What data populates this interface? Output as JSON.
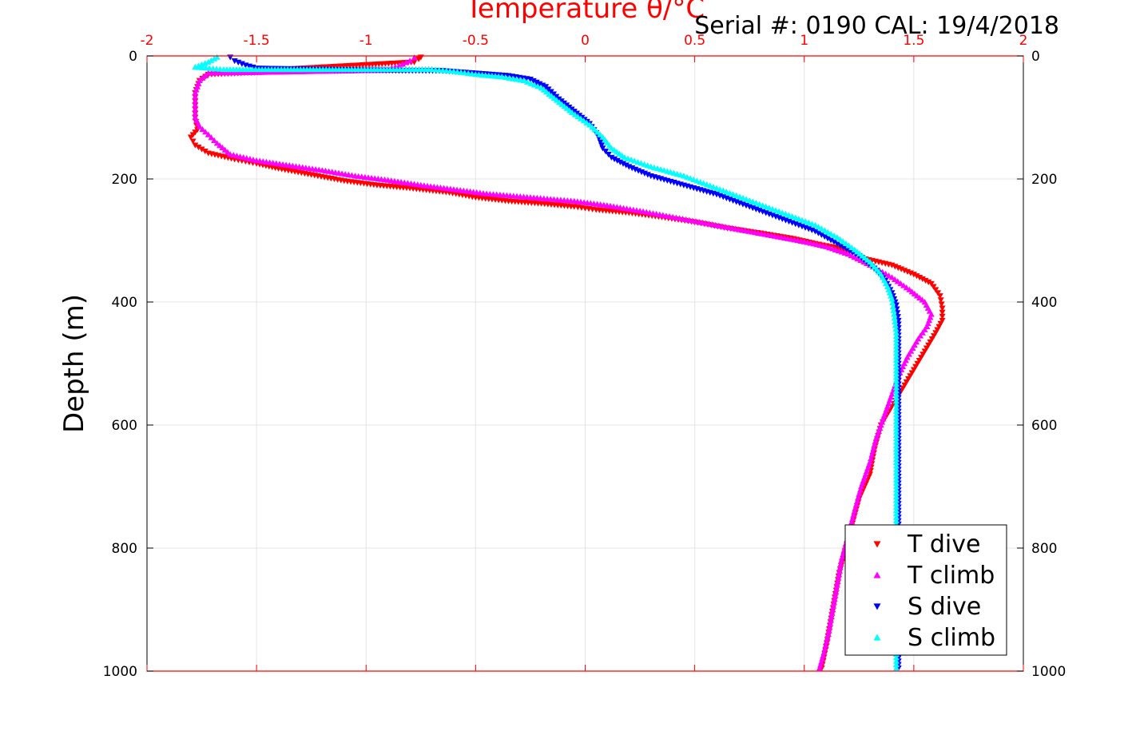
{
  "chart_data": {
    "type": "scatter",
    "title": "Serial #: 0190  CAL: 19/4/2018",
    "xlabel": "Temperature θ/°C",
    "ylabel": "Depth (m)",
    "xlim": [
      -2,
      2
    ],
    "ylim": [
      0,
      1000
    ],
    "y_reversed": true,
    "grid": true,
    "legend_position": "bottom-right",
    "x_ticks": [
      "-2",
      "-1.5",
      "-1",
      "-0.5",
      "0",
      "0.5",
      "1",
      "1.5",
      "2"
    ],
    "y_ticks": [
      "0",
      "200",
      "400",
      "600",
      "800",
      "1000"
    ],
    "x_axis_color": "#ff0000",
    "series": [
      {
        "name": "T dive",
        "marker": "triangle-down",
        "color": "#ff0000",
        "points": [
          [
            -0.75,
            2
          ],
          [
            -0.76,
            5
          ],
          [
            -0.78,
            10
          ],
          [
            -1.5,
            24
          ],
          [
            -1.1,
            24
          ],
          [
            -1.3,
            24
          ],
          [
            -1.72,
            30
          ],
          [
            -1.76,
            40
          ],
          [
            -1.78,
            60
          ],
          [
            -1.78,
            80
          ],
          [
            -1.78,
            100
          ],
          [
            -1.77,
            120
          ],
          [
            -1.8,
            132
          ],
          [
            -1.78,
            145
          ],
          [
            -1.72,
            158
          ],
          [
            -1.6,
            168
          ],
          [
            -1.5,
            175
          ],
          [
            -1.4,
            183
          ],
          [
            -1.25,
            193
          ],
          [
            -1.1,
            203
          ],
          [
            -0.95,
            210
          ],
          [
            -0.8,
            215
          ],
          [
            -0.62,
            222
          ],
          [
            -0.5,
            230
          ],
          [
            -0.35,
            236
          ],
          [
            -0.2,
            240
          ],
          [
            -0.05,
            245
          ],
          [
            0.05,
            250
          ],
          [
            0.2,
            255
          ],
          [
            0.35,
            262
          ],
          [
            0.5,
            270
          ],
          [
            0.65,
            280
          ],
          [
            0.8,
            288
          ],
          [
            0.95,
            297
          ],
          [
            1.05,
            305
          ],
          [
            1.15,
            312
          ],
          [
            1.22,
            320
          ],
          [
            1.28,
            330
          ],
          [
            1.4,
            340
          ],
          [
            1.5,
            355
          ],
          [
            1.58,
            370
          ],
          [
            1.62,
            390
          ],
          [
            1.63,
            410
          ],
          [
            1.63,
            430
          ],
          [
            1.6,
            450
          ],
          [
            1.55,
            480
          ],
          [
            1.5,
            510
          ],
          [
            1.45,
            540
          ],
          [
            1.4,
            570
          ],
          [
            1.35,
            600
          ],
          [
            1.32,
            640
          ],
          [
            1.3,
            680
          ],
          [
            1.25,
            720
          ],
          [
            1.22,
            760
          ],
          [
            1.19,
            800
          ],
          [
            1.16,
            840
          ],
          [
            1.14,
            880
          ],
          [
            1.12,
            920
          ],
          [
            1.1,
            960
          ],
          [
            1.08,
            995
          ]
        ]
      },
      {
        "name": "T climb",
        "marker": "triangle-up",
        "color": "#ff00ff",
        "points": [
          [
            -0.78,
            3
          ],
          [
            -0.8,
            8
          ],
          [
            -0.85,
            16
          ],
          [
            -0.9,
            22
          ],
          [
            -1.35,
            22
          ],
          [
            -0.7,
            22
          ],
          [
            -1.72,
            28
          ],
          [
            -1.76,
            40
          ],
          [
            -1.78,
            60
          ],
          [
            -1.78,
            80
          ],
          [
            -1.78,
            100
          ],
          [
            -1.76,
            115
          ],
          [
            -1.72,
            128
          ],
          [
            -1.68,
            142
          ],
          [
            -1.62,
            160
          ],
          [
            -1.5,
            170
          ],
          [
            -1.35,
            178
          ],
          [
            -1.2,
            186
          ],
          [
            -1.05,
            195
          ],
          [
            -0.9,
            202
          ],
          [
            -0.75,
            210
          ],
          [
            -0.6,
            217
          ],
          [
            -0.45,
            224
          ],
          [
            -0.25,
            230
          ],
          [
            -0.05,
            236
          ],
          [
            0.1,
            243
          ],
          [
            0.25,
            252
          ],
          [
            0.4,
            262
          ],
          [
            0.55,
            272
          ],
          [
            0.7,
            282
          ],
          [
            0.85,
            292
          ],
          [
            1.0,
            302
          ],
          [
            1.1,
            310
          ],
          [
            1.2,
            322
          ],
          [
            1.3,
            340
          ],
          [
            1.4,
            360
          ],
          [
            1.48,
            380
          ],
          [
            1.55,
            400
          ],
          [
            1.58,
            420
          ],
          [
            1.56,
            440
          ],
          [
            1.52,
            460
          ],
          [
            1.47,
            490
          ],
          [
            1.43,
            520
          ],
          [
            1.4,
            550
          ],
          [
            1.37,
            580
          ],
          [
            1.33,
            620
          ],
          [
            1.3,
            660
          ],
          [
            1.26,
            700
          ],
          [
            1.23,
            740
          ],
          [
            1.2,
            780
          ],
          [
            1.17,
            820
          ],
          [
            1.15,
            860
          ],
          [
            1.13,
            900
          ],
          [
            1.11,
            940
          ],
          [
            1.09,
            970
          ],
          [
            1.07,
            995
          ]
        ]
      },
      {
        "name": "S dive",
        "marker": "triangle-down",
        "color": "#0000ff",
        "points": [
          [
            -1.62,
            2
          ],
          [
            -1.6,
            8
          ],
          [
            -1.55,
            15
          ],
          [
            -1.5,
            20
          ],
          [
            -0.85,
            24
          ],
          [
            -0.65,
            24
          ],
          [
            -0.5,
            28
          ],
          [
            -0.35,
            32
          ],
          [
            -0.25,
            38
          ],
          [
            -0.18,
            50
          ],
          [
            -0.12,
            70
          ],
          [
            -0.05,
            90
          ],
          [
            0.02,
            110
          ],
          [
            0.06,
            130
          ],
          [
            0.08,
            150
          ],
          [
            0.12,
            165
          ],
          [
            0.2,
            180
          ],
          [
            0.3,
            195
          ],
          [
            0.45,
            210
          ],
          [
            0.6,
            225
          ],
          [
            0.75,
            245
          ],
          [
            0.9,
            265
          ],
          [
            1.05,
            285
          ],
          [
            1.15,
            305
          ],
          [
            1.25,
            325
          ],
          [
            1.32,
            345
          ],
          [
            1.37,
            365
          ],
          [
            1.4,
            385
          ],
          [
            1.42,
            405
          ],
          [
            1.43,
            430
          ],
          [
            1.43,
            460
          ],
          [
            1.43,
            500
          ],
          [
            1.43,
            550
          ],
          [
            1.43,
            600
          ],
          [
            1.43,
            650
          ],
          [
            1.43,
            700
          ],
          [
            1.43,
            750
          ],
          [
            1.43,
            800
          ],
          [
            1.43,
            850
          ],
          [
            1.43,
            900
          ],
          [
            1.43,
            950
          ],
          [
            1.43,
            995
          ]
        ]
      },
      {
        "name": "S climb",
        "marker": "triangle-up",
        "color": "#00ffff",
        "points": [
          [
            -1.68,
            2
          ],
          [
            -1.72,
            10
          ],
          [
            -1.78,
            18
          ],
          [
            -1.65,
            22
          ],
          [
            -0.7,
            22
          ],
          [
            -0.6,
            25
          ],
          [
            -0.5,
            30
          ],
          [
            -0.38,
            34
          ],
          [
            -0.28,
            40
          ],
          [
            -0.2,
            52
          ],
          [
            -0.13,
            72
          ],
          [
            -0.06,
            92
          ],
          [
            0.02,
            112
          ],
          [
            0.08,
            132
          ],
          [
            0.12,
            150
          ],
          [
            0.18,
            165
          ],
          [
            0.3,
            180
          ],
          [
            0.45,
            195
          ],
          [
            0.6,
            215
          ],
          [
            0.75,
            235
          ],
          [
            0.9,
            255
          ],
          [
            1.05,
            275
          ],
          [
            1.15,
            295
          ],
          [
            1.23,
            315
          ],
          [
            1.3,
            335
          ],
          [
            1.35,
            355
          ],
          [
            1.38,
            375
          ],
          [
            1.4,
            395
          ],
          [
            1.41,
            420
          ],
          [
            1.42,
            450
          ],
          [
            1.42,
            500
          ],
          [
            1.42,
            550
          ],
          [
            1.42,
            600
          ],
          [
            1.42,
            650
          ],
          [
            1.42,
            700
          ],
          [
            1.42,
            750
          ],
          [
            1.42,
            800
          ],
          [
            1.42,
            850
          ],
          [
            1.42,
            900
          ],
          [
            1.42,
            950
          ],
          [
            1.42,
            995
          ]
        ]
      }
    ]
  }
}
